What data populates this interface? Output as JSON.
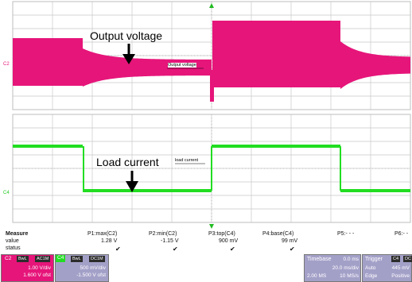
{
  "colors": {
    "c2_magenta": "#e6157a",
    "c4_green": "#22dd22",
    "grid": "#c8c8c8",
    "dark_bar": "#2c2c2c",
    "panel_lavender": "#a3a0c8",
    "trigger_marker": "#22bb22"
  },
  "channel_markers": {
    "c2": "C2",
    "c4": "C4"
  },
  "annotations": {
    "output_voltage_big": "Output voltage",
    "output_voltage_small": "Output voltage",
    "load_current_big": "Load current",
    "load_current_small": "load current"
  },
  "measure": {
    "header_label": "Measure",
    "row_labels": [
      "value",
      "status"
    ],
    "columns": [
      {
        "param": "P1:max(C2)",
        "value": "1.28 V",
        "status": "✔"
      },
      {
        "param": "P2:min(C2)",
        "value": "-1.15 V",
        "status": "✔"
      },
      {
        "param": "P3:top(C4)",
        "value": "900 mV",
        "status": "✔"
      },
      {
        "param": "P4:base(C4)",
        "value": "99 mV",
        "status": "✔"
      },
      {
        "param": "P5:- - -",
        "value": "",
        "status": ""
      },
      {
        "param": "P6:- -",
        "value": "",
        "status": ""
      }
    ]
  },
  "c2_panel": {
    "label": "C2",
    "badges": [
      "BwL",
      "AC1M"
    ],
    "vdiv": "1.00 V/div",
    "offset": "1.600 V ofst"
  },
  "c4_panel": {
    "label": "C4",
    "badges": [
      "BwL",
      "DC1M"
    ],
    "vdiv": "500 mV/div",
    "offset": "-1.500 V ofst"
  },
  "timebase_panel": {
    "title": "Timebase",
    "delay": "0.0 ms",
    "tdiv": "20.0 ms/div",
    "samples": "2.00 MS",
    "rate": "10 MS/s"
  },
  "trigger_panel": {
    "title": "Trigger",
    "source": "C4",
    "coupling": "DC",
    "mode": "Auto",
    "level": "445 mV",
    "type": "Edge",
    "slope": "Positive"
  }
}
